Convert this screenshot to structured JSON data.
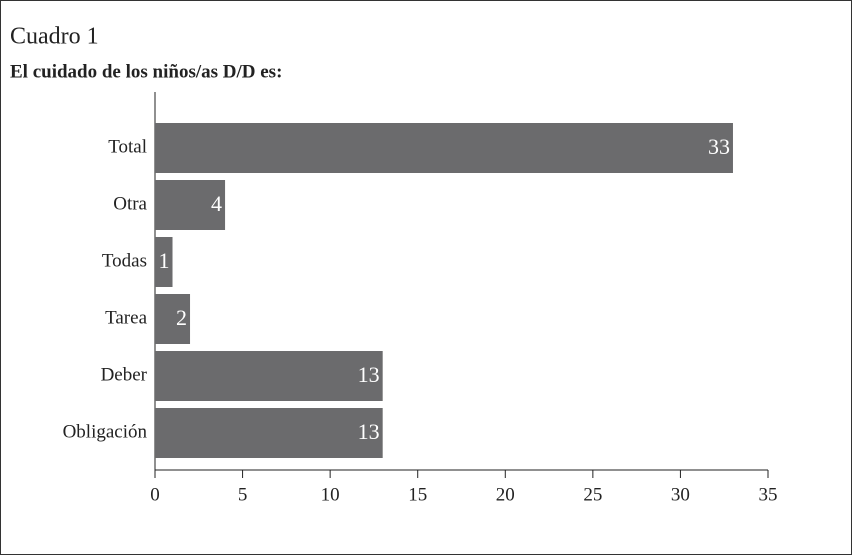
{
  "chart_data": {
    "type": "barh",
    "title": "Cuadro 1",
    "subtitle": "El cuidado de los niños/as D/D es:",
    "categories": [
      "Total",
      "Otra",
      "Todas",
      "Tarea",
      "Deber",
      "Obligación"
    ],
    "values": [
      33,
      4,
      1,
      2,
      13,
      13
    ],
    "color": "#6b6b6d",
    "xlim": [
      0,
      35
    ],
    "xticks": [
      0,
      5,
      10,
      15,
      20,
      25,
      30,
      35
    ]
  }
}
